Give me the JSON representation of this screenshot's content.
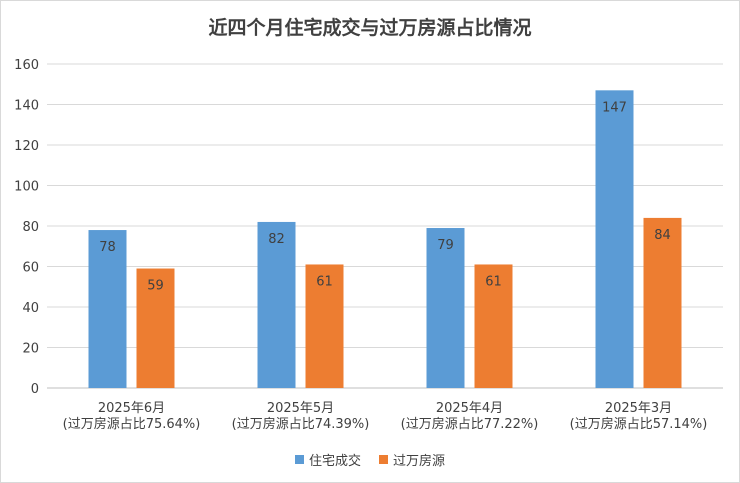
{
  "chart_data": {
    "type": "bar",
    "title": "近四个月住宅成交与过万房源占比情况",
    "categories": [
      [
        "2025年6月",
        "(过万房源占比75.64%)"
      ],
      [
        "2025年5月",
        "(过万房源占比74.39%)"
      ],
      [
        "2025年4月",
        "(过万房源占比77.22%)"
      ],
      [
        "2025年3月",
        "(过万房源占比57.14%)"
      ]
    ],
    "series": [
      {
        "name": "住宅成交",
        "values": [
          78,
          82,
          79,
          147
        ],
        "color": "#5b9bd5"
      },
      {
        "name": "过万房源",
        "values": [
          59,
          61,
          61,
          84
        ],
        "color": "#ed7d31"
      }
    ],
    "ylim": [
      0,
      160
    ],
    "yticks": [
      0,
      20,
      40,
      60,
      80,
      100,
      120,
      140,
      160
    ],
    "grid": true,
    "legend_position": "bottom",
    "xlabel": "",
    "ylabel": ""
  }
}
